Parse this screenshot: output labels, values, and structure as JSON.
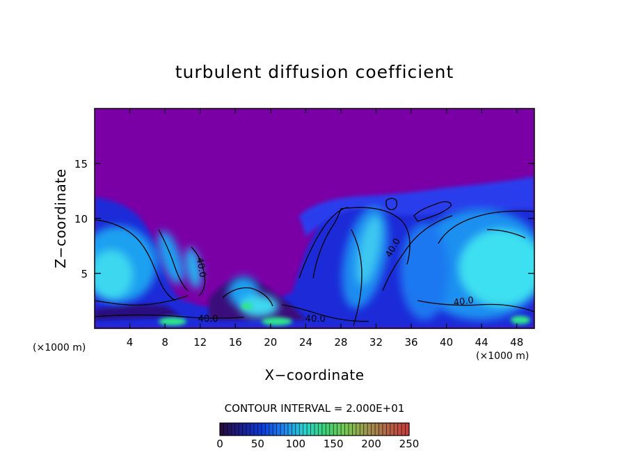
{
  "chart_data": {
    "type": "heatmap",
    "title": "turbulent diffusion coefficient",
    "xlabel": "X−coordinate",
    "ylabel": "Z−coordinate",
    "x_unit": "(×1000 m)",
    "x_unit_right": "(×1000 m)",
    "xlim": [
      0,
      50
    ],
    "ylim": [
      0,
      20
    ],
    "x_ticks": [
      4,
      8,
      12,
      16,
      20,
      24,
      28,
      32,
      36,
      40,
      44,
      48
    ],
    "x_tick_labels": [
      "4",
      "8",
      "12",
      "16",
      "20",
      "24",
      "28",
      "32",
      "36",
      "40",
      "44",
      "48"
    ],
    "y_ticks": [
      5,
      10,
      15
    ],
    "y_tick_labels": [
      "5",
      "10",
      "15"
    ],
    "contour_interval_text": "CONTOUR INTERVAL = 2.000E+01",
    "contour_interval": 20,
    "contour_labels": [
      {
        "text": "40.0",
        "x": 11.8,
        "z": 5.5,
        "rotate": 80
      },
      {
        "text": "40.0",
        "x": 12.9,
        "z": 0.6,
        "rotate": 0
      },
      {
        "text": "40.0",
        "x": 25.1,
        "z": 0.6,
        "rotate": 0
      },
      {
        "text": "40.0",
        "x": 34.2,
        "z": 7.2,
        "rotate": -60
      },
      {
        "text": "40.0",
        "x": 42.0,
        "z": 2.2,
        "rotate": -8
      }
    ],
    "colorbar": {
      "min": 0,
      "max": 250,
      "ticks": [
        0,
        50,
        100,
        150,
        200,
        250
      ],
      "tick_labels": [
        "0",
        "50",
        "100",
        "150",
        "200",
        "250"
      ],
      "colors": [
        "#280a3c",
        "#1a1e8c",
        "#0a3cdc",
        "#1e82f0",
        "#28d2d2",
        "#3cd278",
        "#78c850",
        "#a09650",
        "#b46446",
        "#c83c3c"
      ]
    },
    "colors": {
      "background_field": "#7a00a6",
      "low": "#2a0a88",
      "mid": "#0a3ce6",
      "high": "#1ea0f0",
      "peak": "#3cf0f0",
      "green": "#2ee68c"
    }
  }
}
